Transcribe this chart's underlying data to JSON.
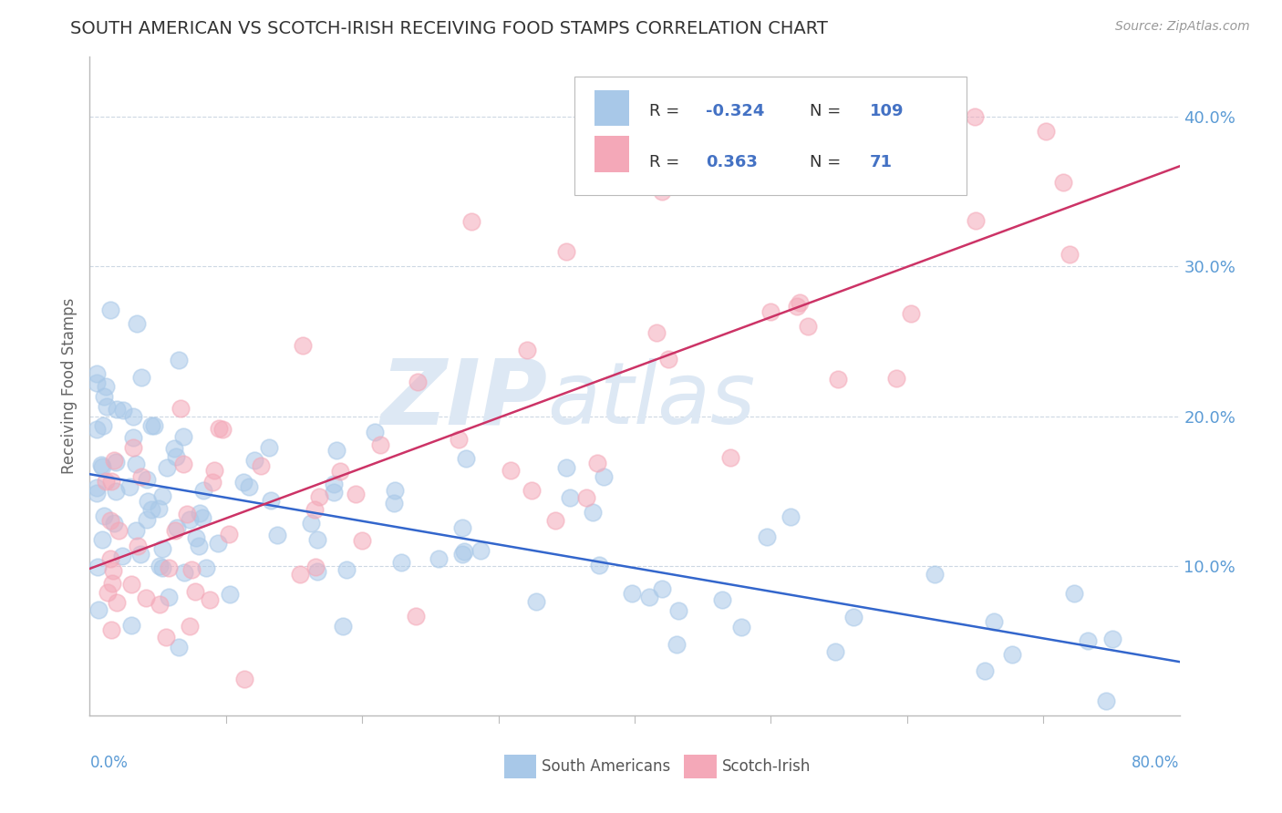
{
  "title": "SOUTH AMERICAN VS SCOTCH-IRISH RECEIVING FOOD STAMPS CORRELATION CHART",
  "source": "Source: ZipAtlas.com",
  "ylabel": "Receiving Food Stamps",
  "xlim": [
    0.0,
    0.8
  ],
  "ylim": [
    0.0,
    0.44
  ],
  "watermark_zip": "ZIP",
  "watermark_atlas": "atlas",
  "color_blue": "#a8c8e8",
  "color_pink": "#f4a8b8",
  "color_blue_line": "#3366cc",
  "color_pink_line": "#cc3366",
  "color_blue_text": "#4472c4",
  "color_axis_label": "#5b9bd5",
  "color_title": "#333333",
  "color_source": "#999999",
  "color_watermark": "#dde8f4",
  "color_grid": "#c8d4e0",
  "R1": "-0.324",
  "N1": "109",
  "R2": "0.363",
  "N2": "71"
}
